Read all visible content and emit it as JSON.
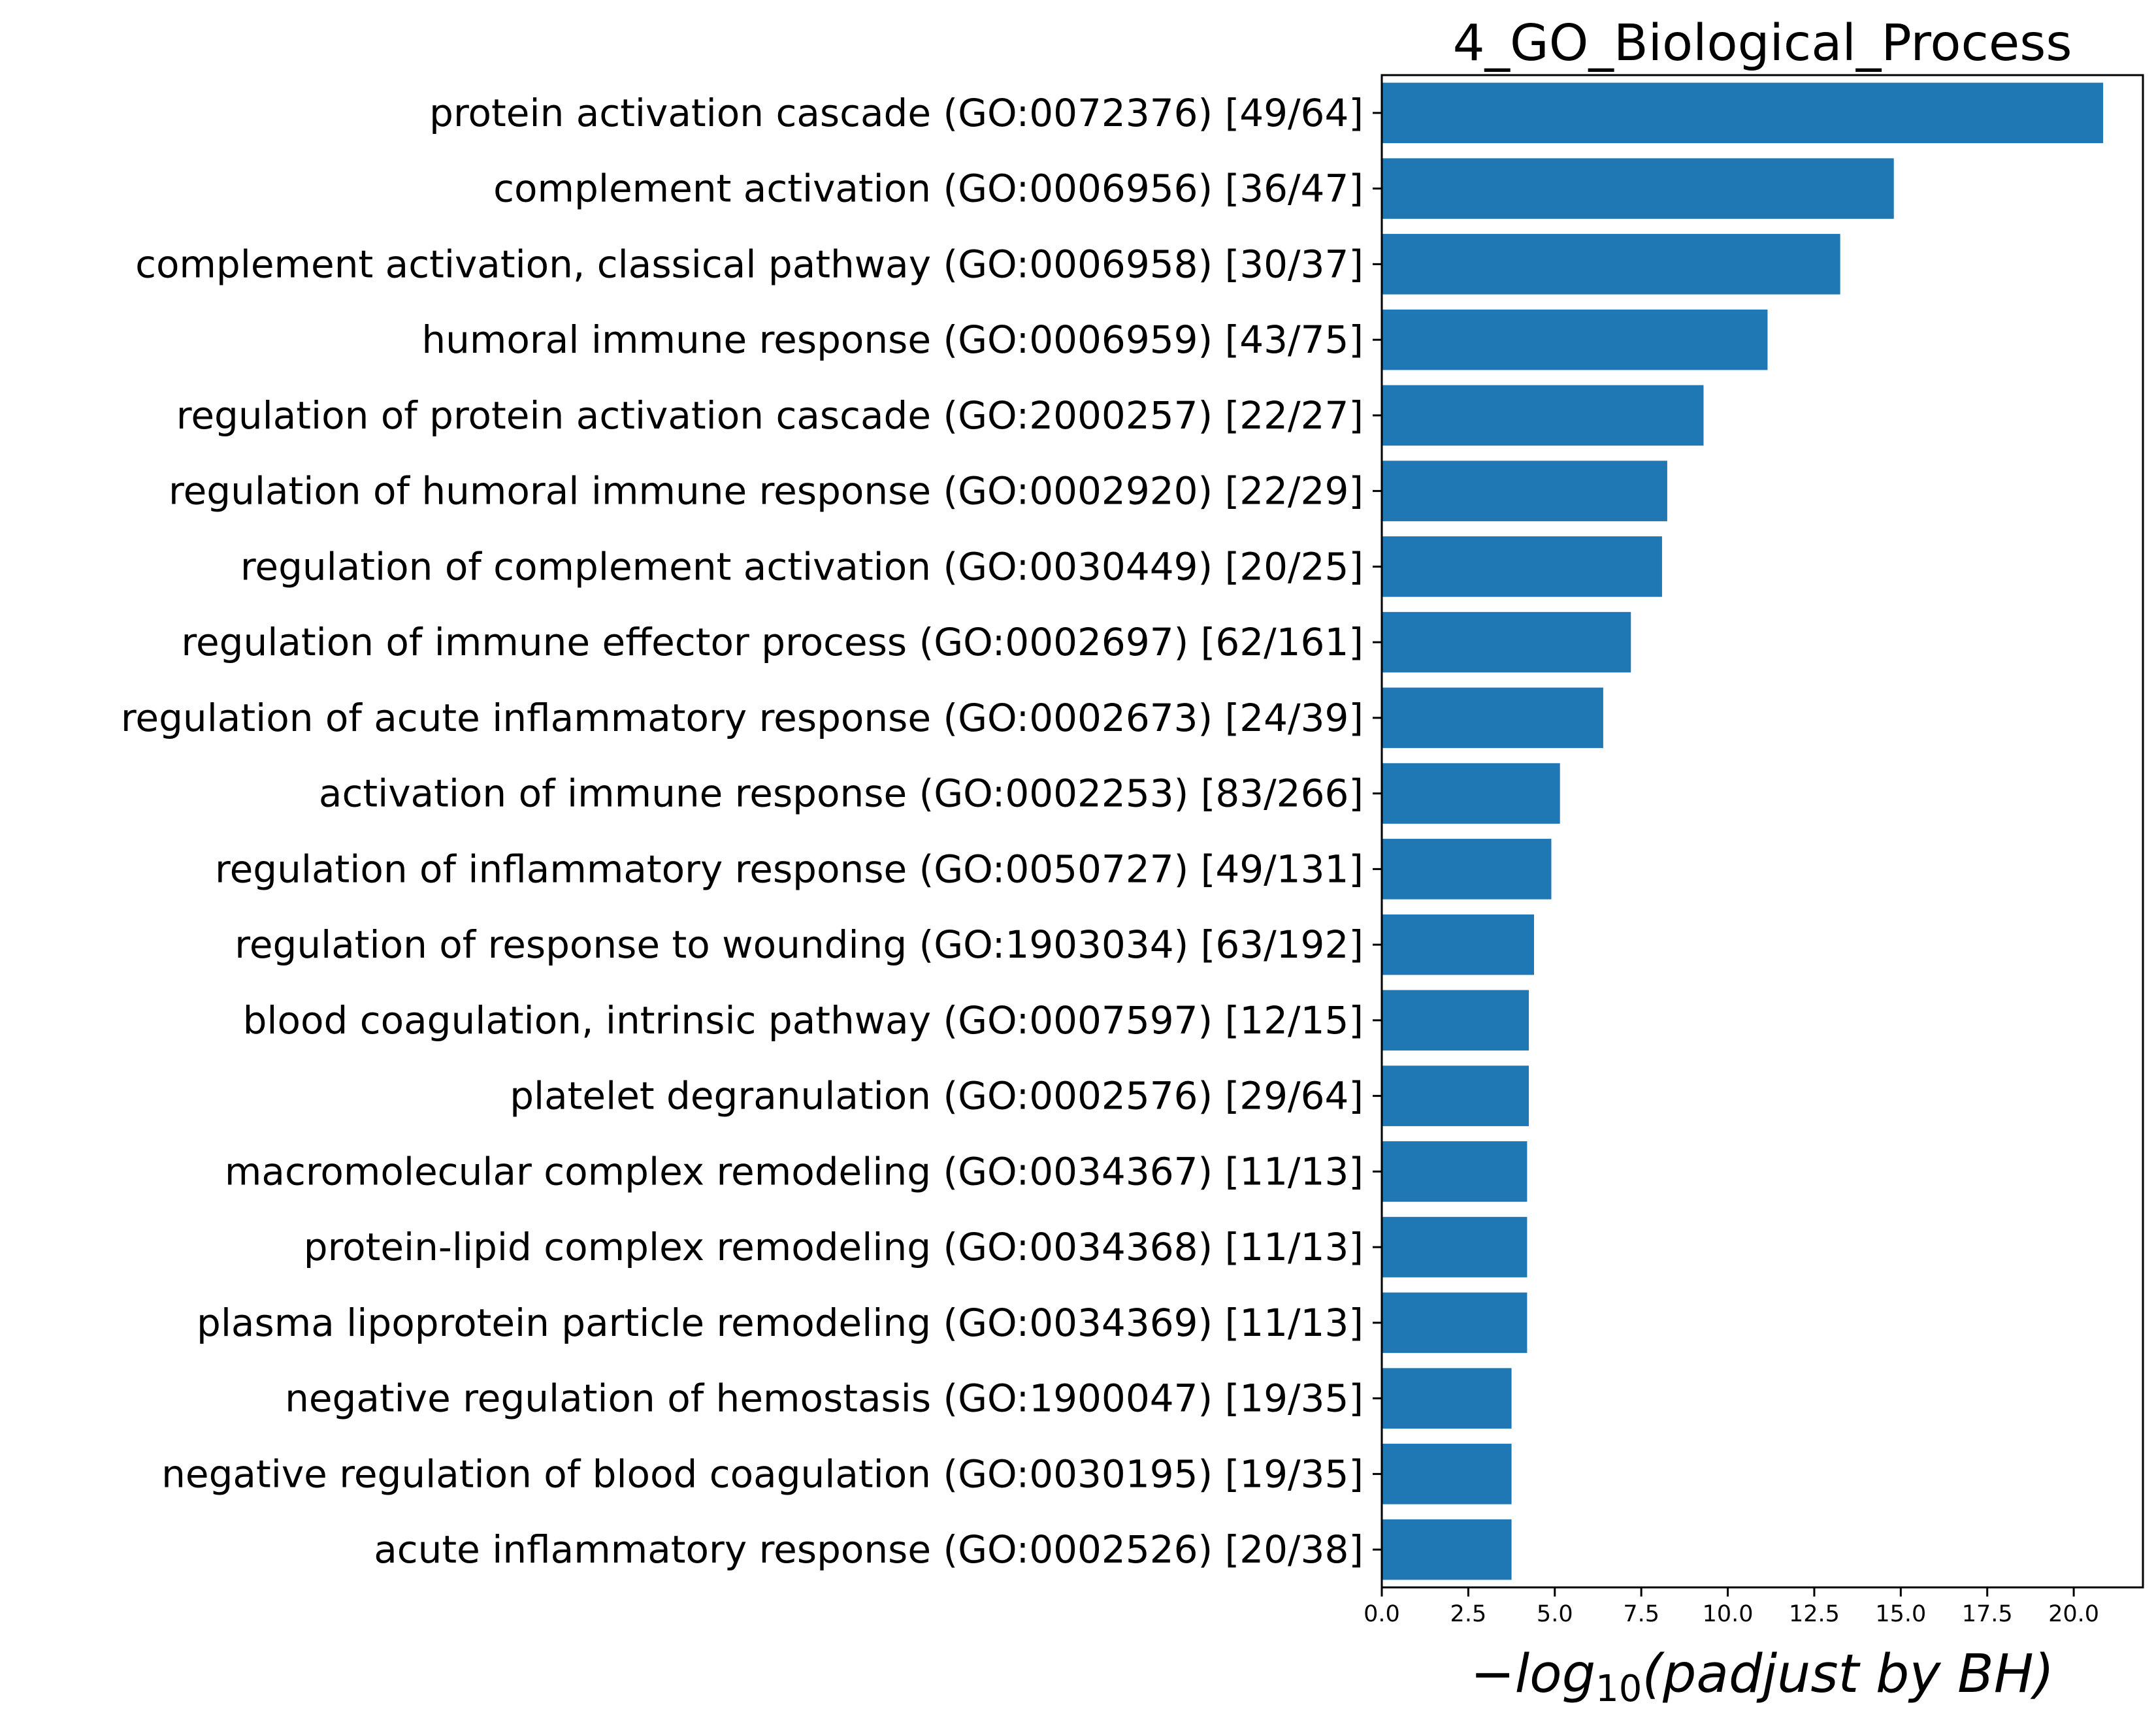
{
  "chart_data": {
    "type": "bar",
    "orientation": "horizontal",
    "title": "4_GO_Biological_Process",
    "xlabel_parts": {
      "prefix": "−log",
      "subscript": "10",
      "suffix": "(padjust by BH)"
    },
    "ylabel": "",
    "xlim": [
      0,
      22
    ],
    "xticks": [
      0.0,
      2.5,
      5.0,
      7.5,
      10.0,
      12.5,
      15.0,
      17.5,
      20.0
    ],
    "xtick_labels": [
      "0.0",
      "2.5",
      "5.0",
      "7.5",
      "10.0",
      "12.5",
      "15.0",
      "17.5",
      "20.0"
    ],
    "grid": false,
    "legend": "none",
    "bar_color": "#1f77b4",
    "categories": [
      "protein activation cascade (GO:0072376) [49/64]",
      "complement activation (GO:0006956) [36/47]",
      "complement activation, classical pathway (GO:0006958) [30/37]",
      "humoral immune response (GO:0006959) [43/75]",
      "regulation of protein activation cascade (GO:2000257) [22/27]",
      "regulation of humoral immune response (GO:0002920) [22/29]",
      "regulation of complement activation (GO:0030449) [20/25]",
      "regulation of immune effector process (GO:0002697) [62/161]",
      "regulation of acute inflammatory response (GO:0002673) [24/39]",
      "activation of immune response (GO:0002253) [83/266]",
      "regulation of inflammatory response (GO:0050727) [49/131]",
      "regulation of response to wounding (GO:1903034) [63/192]",
      "blood coagulation, intrinsic pathway (GO:0007597) [12/15]",
      "platelet degranulation (GO:0002576) [29/64]",
      "macromolecular complex remodeling (GO:0034367) [11/13]",
      "protein-lipid complex remodeling (GO:0034368) [11/13]",
      "plasma lipoprotein particle remodeling (GO:0034369) [11/13]",
      "negative regulation of hemostasis (GO:1900047) [19/35]",
      "negative regulation of blood coagulation (GO:0030195) [19/35]",
      "acute inflammatory response (GO:0002526) [20/38]"
    ],
    "values": [
      20.85,
      14.8,
      13.25,
      11.15,
      9.3,
      8.25,
      8.1,
      7.2,
      6.4,
      5.15,
      4.9,
      4.4,
      4.25,
      4.25,
      4.2,
      4.2,
      4.2,
      3.75,
      3.75,
      3.75
    ]
  }
}
